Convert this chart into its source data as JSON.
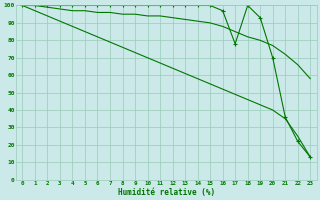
{
  "xlabel": "Humidité relative (%)",
  "xlim": [
    -0.5,
    23.5
  ],
  "ylim": [
    0,
    100
  ],
  "xtick_labels": [
    "0",
    "1",
    "2",
    "3",
    "4",
    "5",
    "6",
    "7",
    "8",
    "9",
    "10",
    "11",
    "12",
    "13",
    "14",
    "15",
    "16",
    "17",
    "18",
    "19",
    "20",
    "21",
    "22",
    "23"
  ],
  "ytick_values": [
    0,
    10,
    20,
    30,
    40,
    50,
    60,
    70,
    80,
    90,
    100
  ],
  "background_color": "#cbe9e9",
  "grid_color": "#99ccbb",
  "line_color": "#007700",
  "line1_x": [
    0,
    1,
    2,
    3,
    4,
    5,
    6,
    7,
    8,
    9,
    10,
    11,
    12,
    13,
    14,
    15,
    16,
    17,
    18,
    19,
    20,
    21,
    22,
    23
  ],
  "line1_y": [
    100,
    100,
    100,
    100,
    100,
    100,
    100,
    100,
    100,
    100,
    100,
    100,
    100,
    100,
    100,
    100,
    97,
    78,
    100,
    93,
    70,
    36,
    22,
    13
  ],
  "line2_x": [
    0,
    1,
    2,
    3,
    4,
    5,
    6,
    7,
    8,
    9,
    10,
    11,
    12,
    13,
    14,
    15,
    16,
    17,
    18,
    19,
    20,
    21,
    22,
    23
  ],
  "line2_y": [
    100,
    100,
    99,
    98,
    97,
    97,
    96,
    96,
    95,
    95,
    94,
    94,
    93,
    92,
    91,
    90,
    88,
    85,
    82,
    80,
    77,
    72,
    66,
    58
  ],
  "line3_x": [
    0,
    1,
    2,
    3,
    4,
    5,
    6,
    7,
    8,
    9,
    10,
    11,
    12,
    13,
    14,
    15,
    16,
    17,
    18,
    19,
    20,
    21,
    22,
    23
  ],
  "line3_y": [
    100,
    97,
    94,
    91,
    88,
    85,
    82,
    79,
    76,
    73,
    70,
    67,
    64,
    61,
    58,
    55,
    52,
    49,
    46,
    43,
    40,
    35,
    25,
    13
  ]
}
